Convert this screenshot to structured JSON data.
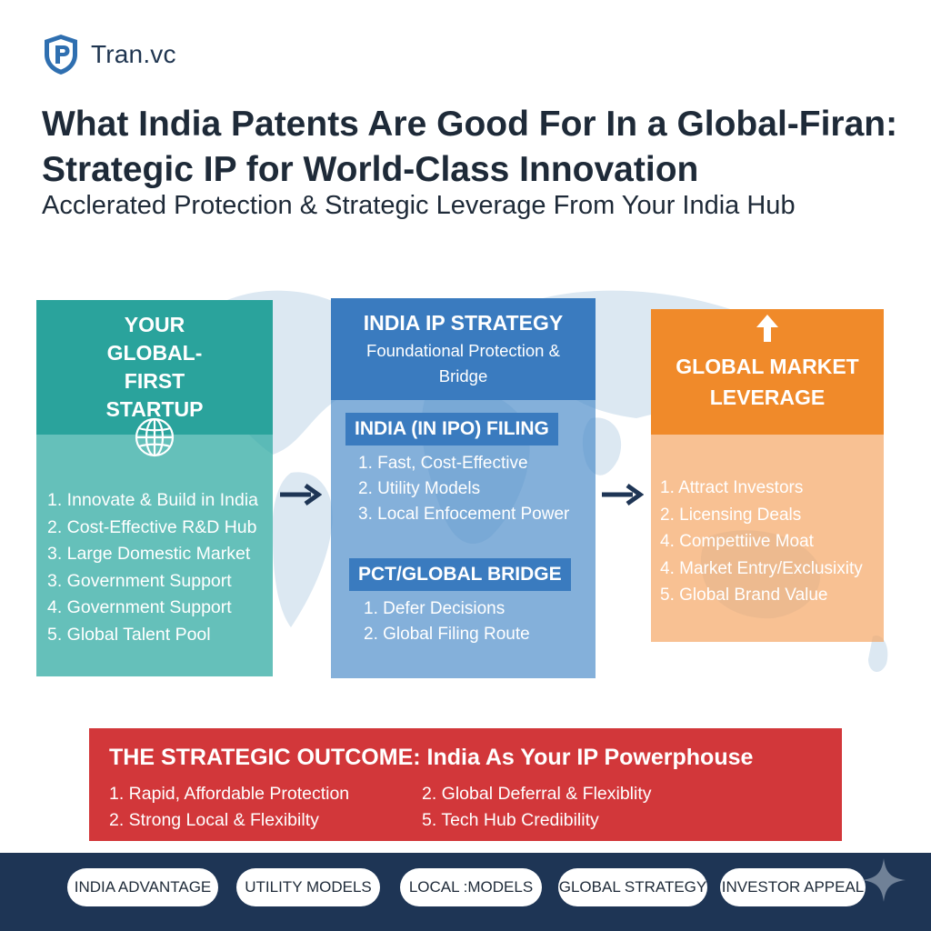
{
  "brand": {
    "name": "Tran.vc",
    "icon": "shield-p-icon"
  },
  "header": {
    "title": "What India Patents Are Good For In a Global-Firan: Strategic IP for World-Class Innovation",
    "subtitle": "Acclerated Protection & Strategic Leverage From Your India Hub"
  },
  "columns": {
    "startup": {
      "title": "YOUR GLOBAL-FIRST STARTUP",
      "icon": "globe-icon",
      "items": [
        "1. Innovate & Build in India",
        "2. Cost-Effective R&D Hub",
        "3. Large Domestic Market",
        "3. Government Support",
        "4. Government Support",
        "5. Global Talent Pool"
      ]
    },
    "strategy": {
      "title": "INDIA IP STRATEGY",
      "subtitle": "Foundational Protection & Bridge",
      "filing": {
        "title": "INDIA (IN IPO) FILING",
        "items": [
          "1. Fast, Cost-Effective",
          "2. Utility Models",
          "3. Local Enfocement Power"
        ]
      },
      "bridge": {
        "title": "PCT/GLOBAL BRIDGE",
        "items": [
          "1. Defer Decisions",
          "2. Global Filing Route"
        ]
      }
    },
    "leverage": {
      "title": "GLOBAL MARKET LEVERAGE",
      "icon": "arrow-up-icon",
      "items": [
        "1. Attract Investors",
        "2. Licensing Deals",
        "4. Compettiive Moat",
        "4. Market Entry/Exclusixity",
        "5. Global Brand Value"
      ]
    }
  },
  "outcome": {
    "title": "THE STRATEGIC OUTCOME: India As Your IP Powerphouse",
    "left": [
      "1. Rapid, Affordable Protection",
      "2. Strong Local & Flexibilty"
    ],
    "right": [
      "2. Global Deferral & Flexiblity",
      "5. Tech Hub Credibility"
    ]
  },
  "footer": {
    "pills": [
      "INDIA ADVANTAGE",
      "UTILITY MODELS",
      "LOCAL :MODELS",
      "GLOBAL STRATEGY",
      "INVESTOR APPEAL"
    ]
  },
  "colors": {
    "teal": "#2aa39c",
    "blue": "#3a7bbf",
    "orange": "#f08a2a",
    "red": "#d2373a",
    "navy": "#1e3555"
  }
}
